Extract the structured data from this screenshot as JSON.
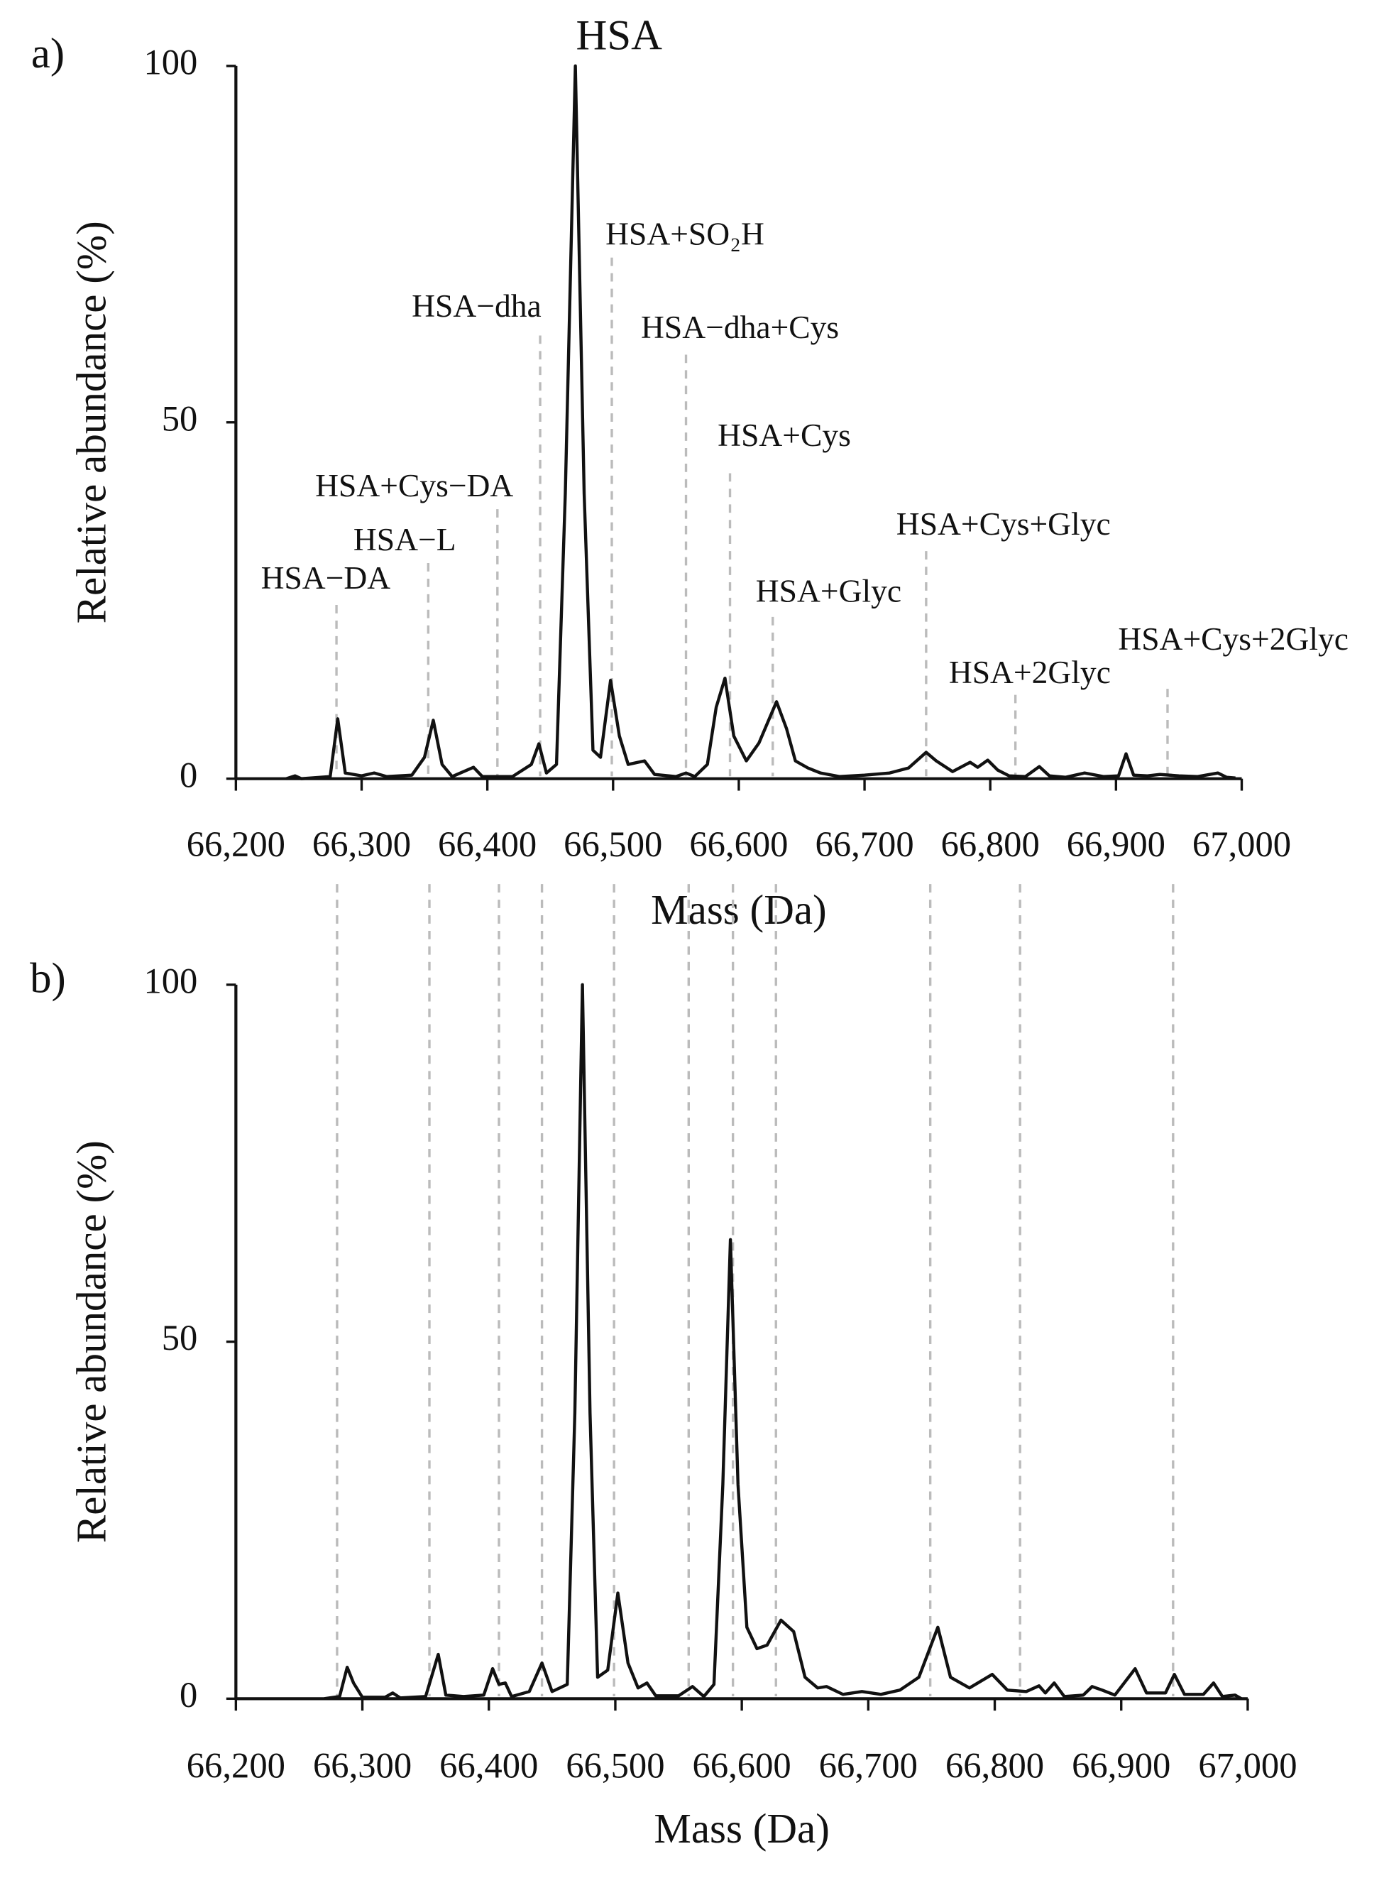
{
  "chart_data": [
    {
      "type": "line",
      "panel_label": "a)",
      "xlabel": "Mass (Da)",
      "ylabel": "Relative abundance (%)",
      "color": "#111111",
      "xlim": [
        66200,
        67000
      ],
      "ylim": [
        0,
        100
      ],
      "xticks": [
        {
          "value": 66200,
          "label": "66,200"
        },
        {
          "value": 66300,
          "label": "66,300"
        },
        {
          "value": 66400,
          "label": "66,400"
        },
        {
          "value": 66500,
          "label": "66,500"
        },
        {
          "value": 66600,
          "label": "66,600"
        },
        {
          "value": 66700,
          "label": "66,700"
        },
        {
          "value": 66800,
          "label": "66,800"
        },
        {
          "value": 66900,
          "label": "66,900"
        },
        {
          "value": 67000,
          "label": "67,000"
        }
      ],
      "yticks": [
        0,
        50,
        100
      ],
      "x": [
        66240,
        66247,
        66252,
        66275,
        66281,
        66287,
        66300,
        66310,
        66320,
        66340,
        66350,
        66357,
        66364,
        66372,
        66389,
        66396,
        66420,
        66435,
        66441,
        66447,
        66455,
        66462,
        66470,
        66477,
        66484,
        66490,
        66498,
        66505,
        66512,
        66525,
        66533,
        66550,
        66558,
        66565,
        66575,
        66582,
        66589,
        66596,
        66606,
        66616,
        66630,
        66638,
        66645,
        66655,
        66665,
        66680,
        66700,
        66720,
        66735,
        66749,
        66757,
        66770,
        66784,
        66790,
        66798,
        66806,
        66815,
        66828,
        66839,
        66847,
        66860,
        66875,
        66890,
        66902,
        66908,
        66914,
        66925,
        66935,
        66950,
        66965,
        66981,
        66988,
        66995
      ],
      "values": [
        0,
        0.4,
        0,
        0.3,
        8.4,
        0.8,
        0.4,
        0.8,
        0.3,
        0.5,
        3,
        8.2,
        2,
        0.3,
        1.6,
        0.3,
        0.3,
        2,
        4.9,
        0.8,
        2,
        40,
        100,
        40,
        4,
        3,
        13.8,
        6,
        2,
        2.5,
        0.6,
        0.3,
        0.8,
        0.3,
        2,
        10,
        14.1,
        6,
        2.5,
        5,
        10.8,
        7,
        2.5,
        1.5,
        0.8,
        0.3,
        0.5,
        0.8,
        1.5,
        3.7,
        2.5,
        1,
        2.3,
        1.6,
        2.6,
        1.2,
        0.4,
        0.3,
        1.7,
        0.4,
        0.2,
        0.8,
        0.3,
        0.4,
        3.5,
        0.5,
        0.4,
        0.6,
        0.4,
        0.3,
        0.8,
        0.2,
        0.1
      ],
      "annotations": [
        {
          "text": "HSA−DA",
          "x": 66280,
          "dashed": true
        },
        {
          "text": "HSA−L",
          "x": 66353,
          "dashed": true
        },
        {
          "text": "HSA+Cys−DA",
          "x": 66408,
          "dashed": true
        },
        {
          "text": "HSA−dha",
          "x": 66442,
          "dashed": true
        },
        {
          "text": "HSA",
          "x": 66470,
          "dashed": false
        },
        {
          "text": "HSA+SO₂H",
          "x": 66499,
          "dashed": true
        },
        {
          "text": "HSA−dha+Cys",
          "x": 66558,
          "dashed": true
        },
        {
          "text": "HSA+Cys",
          "x": 66593,
          "dashed": true
        },
        {
          "text": "HSA+Glyc",
          "x": 66627,
          "dashed": true
        },
        {
          "text": "HSA+Cys+Glyc",
          "x": 66749,
          "dashed": true
        },
        {
          "text": "HSA+2Glyc",
          "x": 66820,
          "dashed": true
        },
        {
          "text": "HSA+Cys+2Glyc",
          "x": 66941,
          "dashed": true
        }
      ]
    },
    {
      "type": "line",
      "panel_label": "b)",
      "xlabel": "Mass (Da)",
      "ylabel": "Relative abundance (%)",
      "color": "#111111",
      "xlim": [
        66200,
        67000
      ],
      "ylim": [
        0,
        100
      ],
      "xticks": [
        {
          "value": 66200,
          "label": "66,200"
        },
        {
          "value": 66300,
          "label": "66,300"
        },
        {
          "value": 66400,
          "label": "66,400"
        },
        {
          "value": 66500,
          "label": "66,500"
        },
        {
          "value": 66600,
          "label": "66,600"
        },
        {
          "value": 66700,
          "label": "66,700"
        },
        {
          "value": 66800,
          "label": "66,800"
        },
        {
          "value": 66900,
          "label": "66,900"
        },
        {
          "value": 67000,
          "label": "67,000"
        }
      ],
      "yticks": [
        0,
        50,
        100
      ],
      "x": [
        66270,
        66282,
        66288,
        66293,
        66300,
        66318,
        66324,
        66330,
        66350,
        66360,
        66366,
        66380,
        66396,
        66403,
        66408,
        66413,
        66418,
        66432,
        66442,
        66450,
        66462,
        66468,
        66474,
        66480,
        66486,
        66494,
        66502,
        66510,
        66518,
        66525,
        66532,
        66550,
        66561,
        66570,
        66578,
        66585,
        66591,
        66597,
        66604,
        66612,
        66620,
        66631,
        66641,
        66650,
        66660,
        66667,
        66680,
        66695,
        66710,
        66725,
        66740,
        66755,
        66765,
        66780,
        66798,
        66810,
        66825,
        66835,
        66840,
        66847,
        66855,
        66870,
        66877,
        66885,
        66895,
        66911,
        66920,
        66935,
        66942,
        66950,
        66965,
        66973,
        66980,
        66990,
        66995
      ],
      "values": [
        0,
        0.3,
        4.4,
        2.2,
        0.2,
        0.2,
        0.8,
        0.1,
        0.3,
        6.2,
        0.5,
        0.3,
        0.5,
        4.2,
        2,
        2.2,
        0.3,
        1,
        5,
        1,
        2,
        40,
        100,
        40,
        3,
        4,
        14.8,
        5,
        1.5,
        2.2,
        0.4,
        0.4,
        1.7,
        0.3,
        2,
        30,
        64.3,
        30,
        10,
        7,
        7.5,
        11,
        9.4,
        3,
        1.5,
        1.7,
        0.6,
        1,
        0.6,
        1.2,
        3,
        10,
        3,
        1.5,
        3.4,
        1.2,
        1,
        1.8,
        0.8,
        2.2,
        0.3,
        0.5,
        1.7,
        1.2,
        0.5,
        4.2,
        0.8,
        0.8,
        3.4,
        0.6,
        0.6,
        2.2,
        0.3,
        0.5,
        0
      ]
    }
  ]
}
